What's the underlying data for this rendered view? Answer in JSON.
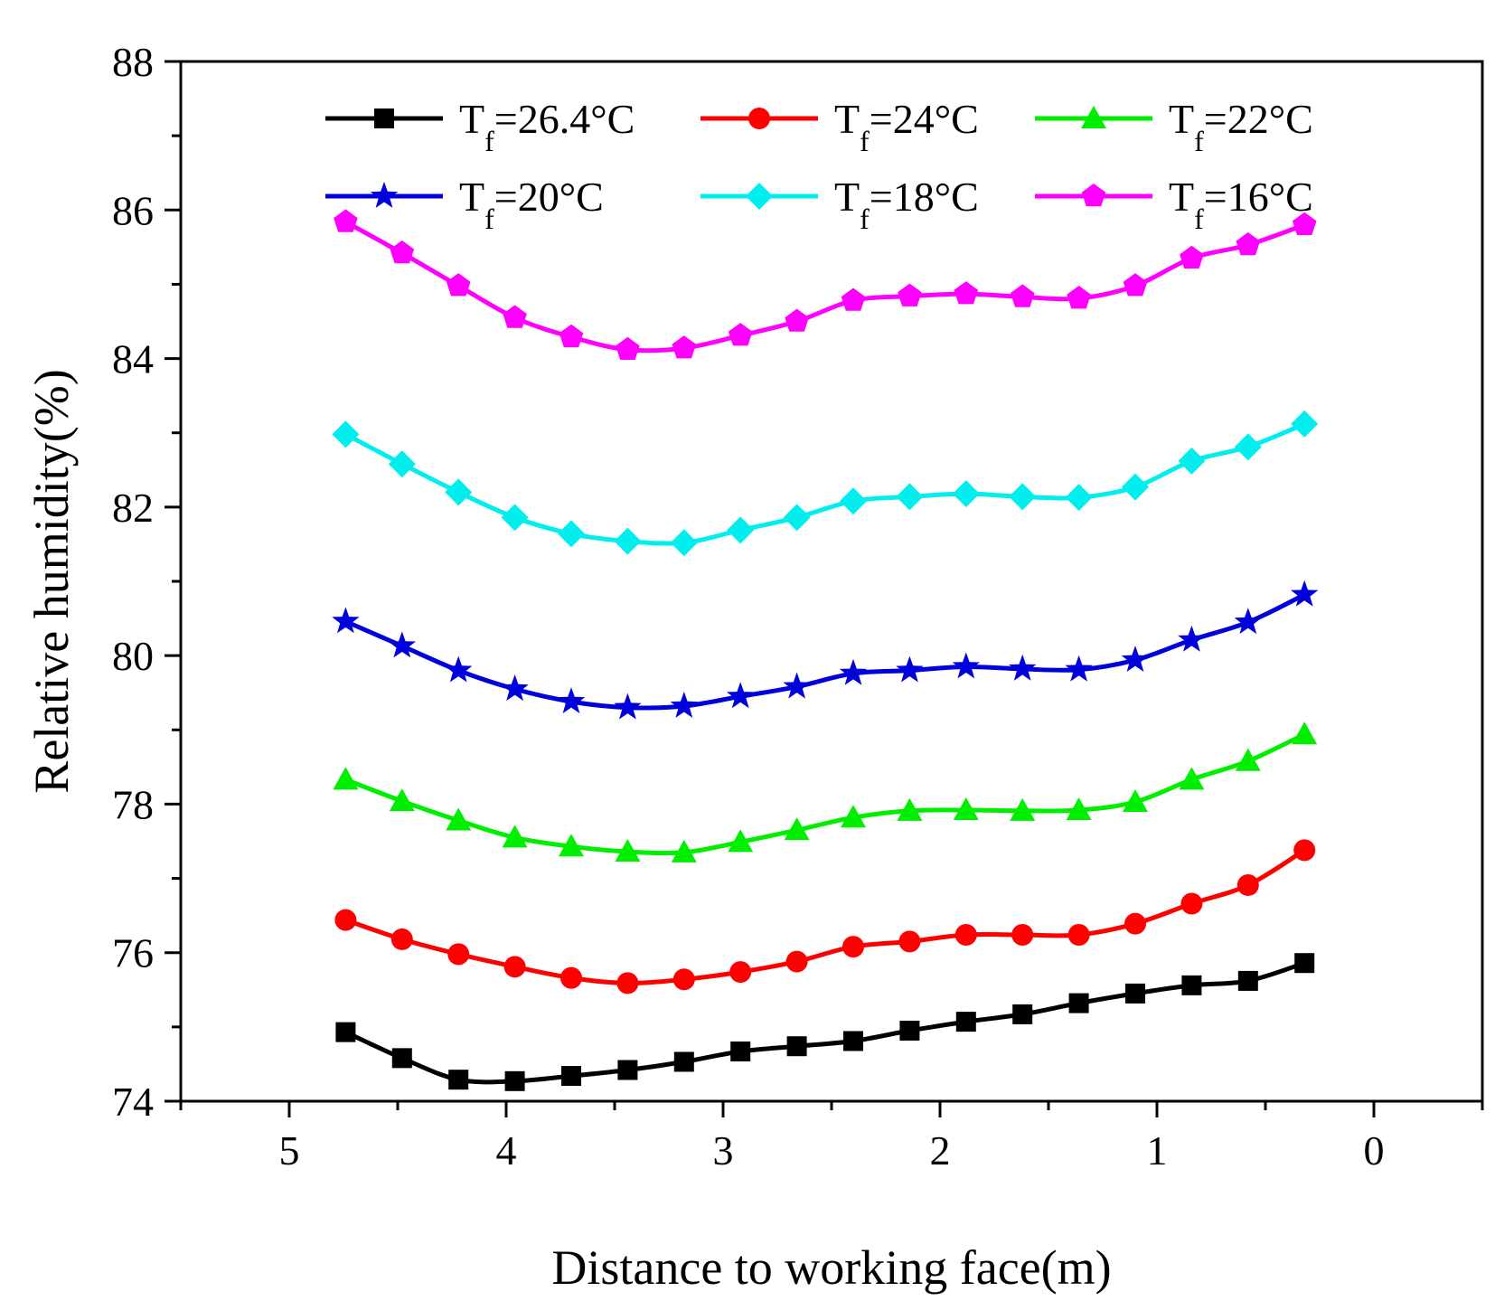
{
  "chart_data": {
    "type": "line",
    "title": "",
    "xlabel": "Distance to working face(m)",
    "ylabel": "Relative humidity(%)",
    "xlim": [
      5.5,
      -0.5
    ],
    "ylim": [
      74,
      88
    ],
    "x_ticks": [
      "5",
      "4",
      "3",
      "2",
      "1",
      "0"
    ],
    "y_ticks": [
      "74",
      "76",
      "78",
      "80",
      "82",
      "84",
      "86",
      "88"
    ],
    "legend_position": "top",
    "x": [
      4.74,
      4.48,
      4.22,
      3.96,
      3.7,
      3.44,
      3.18,
      2.92,
      2.66,
      2.4,
      2.14,
      1.88,
      1.62,
      1.36,
      1.1,
      0.84,
      0.58,
      0.32
    ],
    "series": [
      {
        "name": "26.4°C",
        "prefix": "T",
        "subscript": "f",
        "label": "Tf=26.4°C",
        "color": "#000000",
        "marker": "square",
        "values": [
          74.93,
          74.58,
          74.29,
          74.27,
          74.34,
          74.42,
          74.53,
          74.67,
          74.74,
          74.81,
          74.95,
          75.07,
          75.17,
          75.32,
          75.45,
          75.56,
          75.62,
          75.86
        ]
      },
      {
        "name": "24°C",
        "prefix": "T",
        "subscript": "f",
        "label": "Tf=24°C",
        "color": "#ff0000",
        "marker": "circle",
        "values": [
          76.44,
          76.18,
          75.98,
          75.81,
          75.66,
          75.59,
          75.64,
          75.74,
          75.88,
          76.08,
          76.15,
          76.24,
          76.24,
          76.24,
          76.39,
          76.66,
          76.91,
          77.38
        ]
      },
      {
        "name": "22°C",
        "prefix": "T",
        "subscript": "f",
        "label": "Tf=22°C",
        "color": "#00ee00",
        "marker": "triangle",
        "values": [
          78.33,
          78.04,
          77.78,
          77.55,
          77.43,
          77.36,
          77.35,
          77.49,
          77.65,
          77.82,
          77.91,
          77.92,
          77.91,
          77.92,
          78.03,
          78.33,
          78.58,
          78.94
        ]
      },
      {
        "name": "20°C",
        "prefix": "T",
        "subscript": "f",
        "label": "Tf=20°C",
        "color": "#0000dd",
        "marker": "star",
        "values": [
          80.46,
          80.13,
          79.8,
          79.55,
          79.38,
          79.3,
          79.32,
          79.45,
          79.58,
          79.76,
          79.8,
          79.85,
          79.82,
          79.81,
          79.94,
          80.21,
          80.45,
          80.82
        ]
      },
      {
        "name": "18°C",
        "prefix": "T",
        "subscript": "f",
        "label": "Tf=18°C",
        "color": "#00eeee",
        "marker": "diamond",
        "values": [
          82.98,
          82.58,
          82.2,
          81.86,
          81.64,
          81.54,
          81.52,
          81.69,
          81.86,
          82.08,
          82.14,
          82.18,
          82.14,
          82.13,
          82.27,
          82.62,
          82.81,
          83.12
        ]
      },
      {
        "name": "16°C",
        "prefix": "T",
        "subscript": "f",
        "label": "Tf=16°C",
        "color": "#ff00ff",
        "marker": "pentagon",
        "values": [
          85.84,
          85.42,
          84.98,
          84.55,
          84.29,
          84.12,
          84.14,
          84.31,
          84.5,
          84.78,
          84.84,
          84.87,
          84.83,
          84.81,
          84.98,
          85.35,
          85.53,
          85.8
        ]
      }
    ]
  }
}
